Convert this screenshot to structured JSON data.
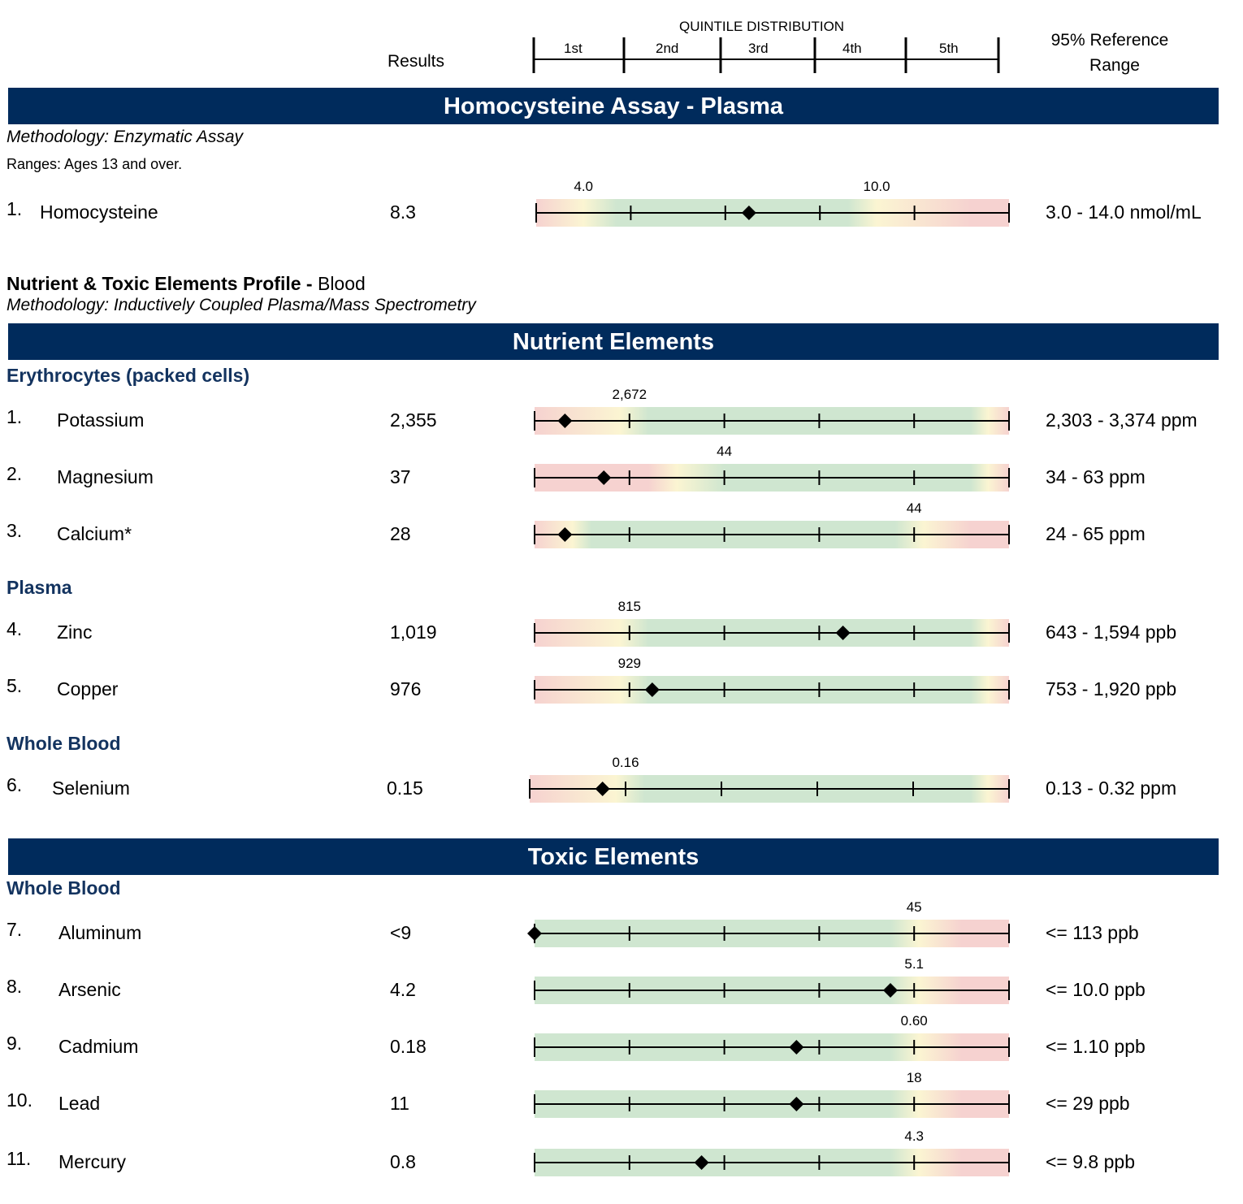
{
  "header": {
    "quintile_title": "QUINTILE DISTRIBUTION",
    "quintiles": [
      "1st",
      "2nd",
      "3rd",
      "4th",
      "5th"
    ],
    "results_label": "Results",
    "reference_line1": "95% Reference",
    "reference_line2": "Range"
  },
  "homocysteine": {
    "banner": "Homocysteine Assay - Plasma",
    "methodology": "Methodology: Enzymatic Assay",
    "ranges_note": "Ranges: Ages 13 and over.",
    "rows": [
      {
        "num": "1.",
        "name": "Homocysteine",
        "result": "8.3",
        "range": "3.0 - 14.0 nmol/mL",
        "thresholds": [
          "4.0",
          "10.0"
        ],
        "threshold_quintile_pos": [
          0.5,
          3.6
        ],
        "marker_quintile_pos": 2.25,
        "scheme": "mid"
      }
    ]
  },
  "profile": {
    "title": "Nutrient & Toxic Elements Profile - ",
    "title_suffix": "Blood",
    "methodology": "Methodology: Inductively Coupled Plasma/Mass Spectrometry"
  },
  "nutrient": {
    "banner": "Nutrient Elements",
    "groups": [
      {
        "title": "Erythrocytes (packed cells)",
        "rows": [
          {
            "num": "1.",
            "name": "Potassium",
            "result": "2,355",
            "range": "2,303 - 3,374 ppm",
            "thresholds": [
              "2,672"
            ],
            "threshold_quintile_pos": [
              1.0
            ],
            "marker_quintile_pos": 0.32,
            "scheme": "low"
          },
          {
            "num": "2.",
            "name": "Magnesium",
            "result": "37",
            "range": "34 - 63 ppm",
            "thresholds": [
              "44"
            ],
            "threshold_quintile_pos": [
              2.0
            ],
            "marker_quintile_pos": 0.73,
            "scheme": "low2"
          },
          {
            "num": "3.",
            "name": "Calcium*",
            "result": "28",
            "range": "24 - 65 ppm",
            "thresholds": [
              "44"
            ],
            "threshold_quintile_pos": [
              4.0
            ],
            "marker_quintile_pos": 0.32,
            "scheme": "lowhigh"
          }
        ]
      },
      {
        "title": "Plasma",
        "rows": [
          {
            "num": "4.",
            "name": "Zinc",
            "result": "1,019",
            "range": "643 - 1,594 ppb",
            "thresholds": [
              "815"
            ],
            "threshold_quintile_pos": [
              1.0
            ],
            "marker_quintile_pos": 3.25,
            "scheme": "low"
          },
          {
            "num": "5.",
            "name": "Copper",
            "result": "976",
            "range": "753 - 1,920 ppb",
            "thresholds": [
              "929"
            ],
            "threshold_quintile_pos": [
              1.0
            ],
            "marker_quintile_pos": 1.24,
            "scheme": "low"
          }
        ]
      },
      {
        "title": "Whole Blood",
        "rows": [
          {
            "num": "6.",
            "name": "Selenium",
            "result": "0.15",
            "range": "0.13 - 0.32 ppm",
            "thresholds": [
              "0.16"
            ],
            "threshold_quintile_pos": [
              1.0
            ],
            "marker_quintile_pos": 0.76,
            "scheme": "low"
          }
        ]
      }
    ]
  },
  "toxic": {
    "banner": "Toxic Elements",
    "groups": [
      {
        "title": "Whole Blood",
        "rows": [
          {
            "num": "7.",
            "name": "Aluminum",
            "result": "<9",
            "range": "<= 113 ppb",
            "thresholds": [
              "45"
            ],
            "threshold_quintile_pos": [
              4.0
            ],
            "marker_quintile_pos": 0.0,
            "scheme": "high"
          },
          {
            "num": "8.",
            "name": "Arsenic",
            "result": "4.2",
            "range": "<= 10.0 ppb",
            "thresholds": [
              "5.1"
            ],
            "threshold_quintile_pos": [
              4.0
            ],
            "marker_quintile_pos": 3.75,
            "scheme": "high"
          },
          {
            "num": "9.",
            "name": "Cadmium",
            "result": "0.18",
            "range": "<= 1.10 ppb",
            "thresholds": [
              "0.60"
            ],
            "threshold_quintile_pos": [
              4.0
            ],
            "marker_quintile_pos": 2.76,
            "scheme": "high"
          },
          {
            "num": "10.",
            "name": "Lead",
            "result": "11",
            "range": "<= 29 ppb",
            "thresholds": [
              "18"
            ],
            "threshold_quintile_pos": [
              4.0
            ],
            "marker_quintile_pos": 2.76,
            "scheme": "high"
          },
          {
            "num": "11.",
            "name": "Mercury",
            "result": "0.8",
            "range": "<= 9.8 ppb",
            "thresholds": [
              "4.3"
            ],
            "threshold_quintile_pos": [
              4.0
            ],
            "marker_quintile_pos": 1.76,
            "scheme": "high"
          }
        ]
      }
    ]
  },
  "colors": {
    "banner": "#002b5c",
    "subhead": "#13335f",
    "green": "#cfe6d0",
    "yellow": "#fbf5d2",
    "red": "#f6d2d0"
  }
}
